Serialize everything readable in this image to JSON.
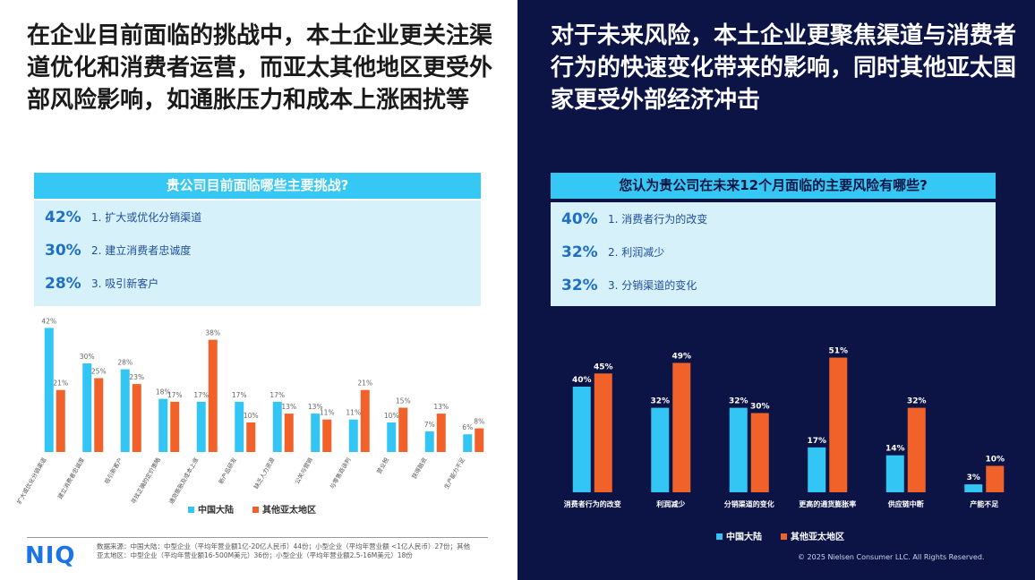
{
  "left": {
    "heading": "在企业目前面临的挑战中，本土企业更关注渠道优化和消费者运营，而亚太其他地区更受外部风险影响，如通胀压力和成本上涨困扰等",
    "question": "贵公司目前面临哪些主要挑战?",
    "answers": [
      {
        "pct": "42%",
        "text": "1. 扩大或优化分销渠道"
      },
      {
        "pct": "30%",
        "text": "2. 建立消费者忠诚度"
      },
      {
        "pct": "28%",
        "text": "3. 吸引新客户"
      }
    ],
    "source": "数据来源：中国大陆：中型企业（平均年营业额1亿-20亿人民币）44份；小型企业（平均年营业额 <1亿人民币）27份；其他亚太地区：中型企业（平均年营业额16-500M美元）36份；小型企业（平均年营业额2.5-16M美元）18份",
    "logo": "NIQ"
  },
  "right": {
    "heading": "对于未来风险，本土企业更聚焦渠道与消费者行为的快速变化带来的影响，同时其他亚太国家更受外部经济冲击",
    "question": "您认为贵公司在未来12个月面临的主要风险有哪些?",
    "answers": [
      {
        "pct": "40%",
        "text": "1. 消费者行为的改变"
      },
      {
        "pct": "32%",
        "text": "2. 利润减少"
      },
      {
        "pct": "32%",
        "text": "3. 分销渠道的变化"
      }
    ],
    "copyright": "© 2025 Nielsen Consumer LLC. All Rights Reserved."
  },
  "chart_data": [
    {
      "type": "bar",
      "categories": [
        "扩大或优化分销渠道",
        "建立消费者忠诚度",
        "吸引新客户",
        "寻找正确的定价策略",
        "通货膨胀及成本上涨",
        "新产品研发",
        "缺乏人力资源",
        "公关与营销",
        "与零售商谈判",
        "营业税",
        "获得融资",
        "生产能力不足"
      ],
      "series": [
        {
          "name": "中国大陆",
          "color": "#33c6f4",
          "values": [
            42,
            30,
            28,
            18,
            17,
            17,
            17,
            13,
            11,
            10,
            7,
            6
          ],
          "value_labels": [
            "42%",
            "30%",
            "28%",
            "18%",
            "17%",
            "17%",
            "17%",
            "13%",
            "11%",
            "10%",
            "7%",
            "6%"
          ]
        },
        {
          "name": "其他亚太地区",
          "color": "#f0622a",
          "values": [
            21,
            25,
            23,
            17,
            38,
            10,
            13,
            11,
            21,
            15,
            13,
            8
          ],
          "value_labels": [
            "21%",
            "25%",
            "23%",
            "17%",
            "38%",
            "10%",
            "13%",
            "11%",
            "21%",
            "15%",
            "13%",
            "8%"
          ]
        }
      ]
    },
    {
      "type": "bar",
      "categories": [
        "消费者行为的改变",
        "利润减少",
        "分销渠道的变化",
        "更高的通货膨胀率",
        "供应链中断",
        "产能不足"
      ],
      "series": [
        {
          "name": "中国大陆",
          "color": "#33c6f4",
          "values": [
            40,
            32,
            32,
            17,
            14,
            3
          ],
          "value_labels": [
            "40%",
            "32%",
            "32%",
            "17%",
            "14%",
            "3%"
          ]
        },
        {
          "name": "其他亚太地区",
          "color": "#f0622a",
          "values": [
            45,
            49,
            30,
            51,
            32,
            10
          ],
          "value_labels": [
            "45%",
            "49%",
            "30%",
            "51%",
            "32%",
            "10%"
          ]
        }
      ]
    }
  ]
}
